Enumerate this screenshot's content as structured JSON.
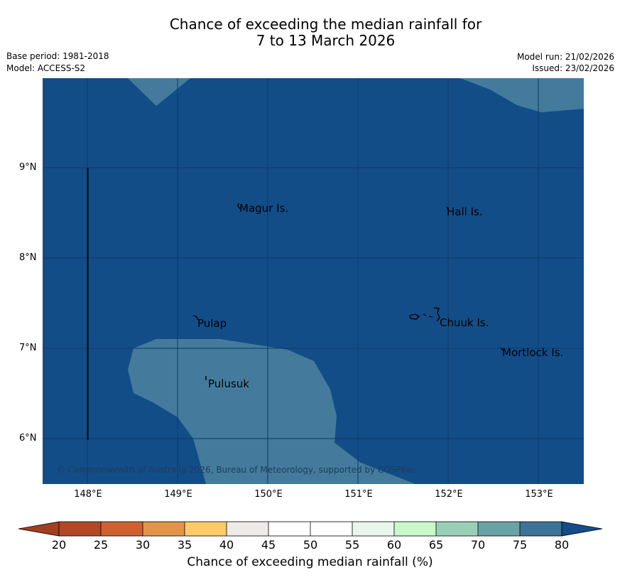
{
  "title": {
    "line1": "Chance of exceeding the median rainfall for",
    "line2": "7 to 13 March 2026"
  },
  "meta": {
    "base_period": "Base period: 1981-2018",
    "model": "Model: ACCESS-S2",
    "model_run": "Model run: 21/02/2026",
    "issued": "Issued: 23/02/2026"
  },
  "map": {
    "lat_labels": [
      "9°N",
      "8°N",
      "7°N",
      "6°N"
    ],
    "lon_labels": [
      "148°E",
      "149°E",
      "150°E",
      "151°E",
      "152°E",
      "153°E"
    ],
    "places": [
      "Magur Is.",
      "Hall Is.",
      "Pulap",
      "Chuuk Is.",
      "Mortlock Is.",
      "Pulusuk"
    ],
    "copyright": "© Commonwealth of Australia 2026, Bureau of Meteorology, supported by COSPPac",
    "colors": {
      "dominant_fill": "#134d88",
      "secondary_fill": "#447b9c"
    }
  },
  "colorbar": {
    "ticks": [
      "20",
      "25",
      "30",
      "35",
      "40",
      "45",
      "50",
      "55",
      "60",
      "65",
      "70",
      "75",
      "80"
    ],
    "colors": [
      "#a13f21",
      "#b24826",
      "#cf6131",
      "#e39448",
      "#fecb67",
      "#ecebe8",
      "#ffffff",
      "#ffffff",
      "#e9f6eb",
      "#c8f8c9",
      "#9acfb7",
      "#6aa3a6",
      "#3d7396",
      "#134d88"
    ],
    "label": "Chance of exceeding median rainfall (%)"
  }
}
